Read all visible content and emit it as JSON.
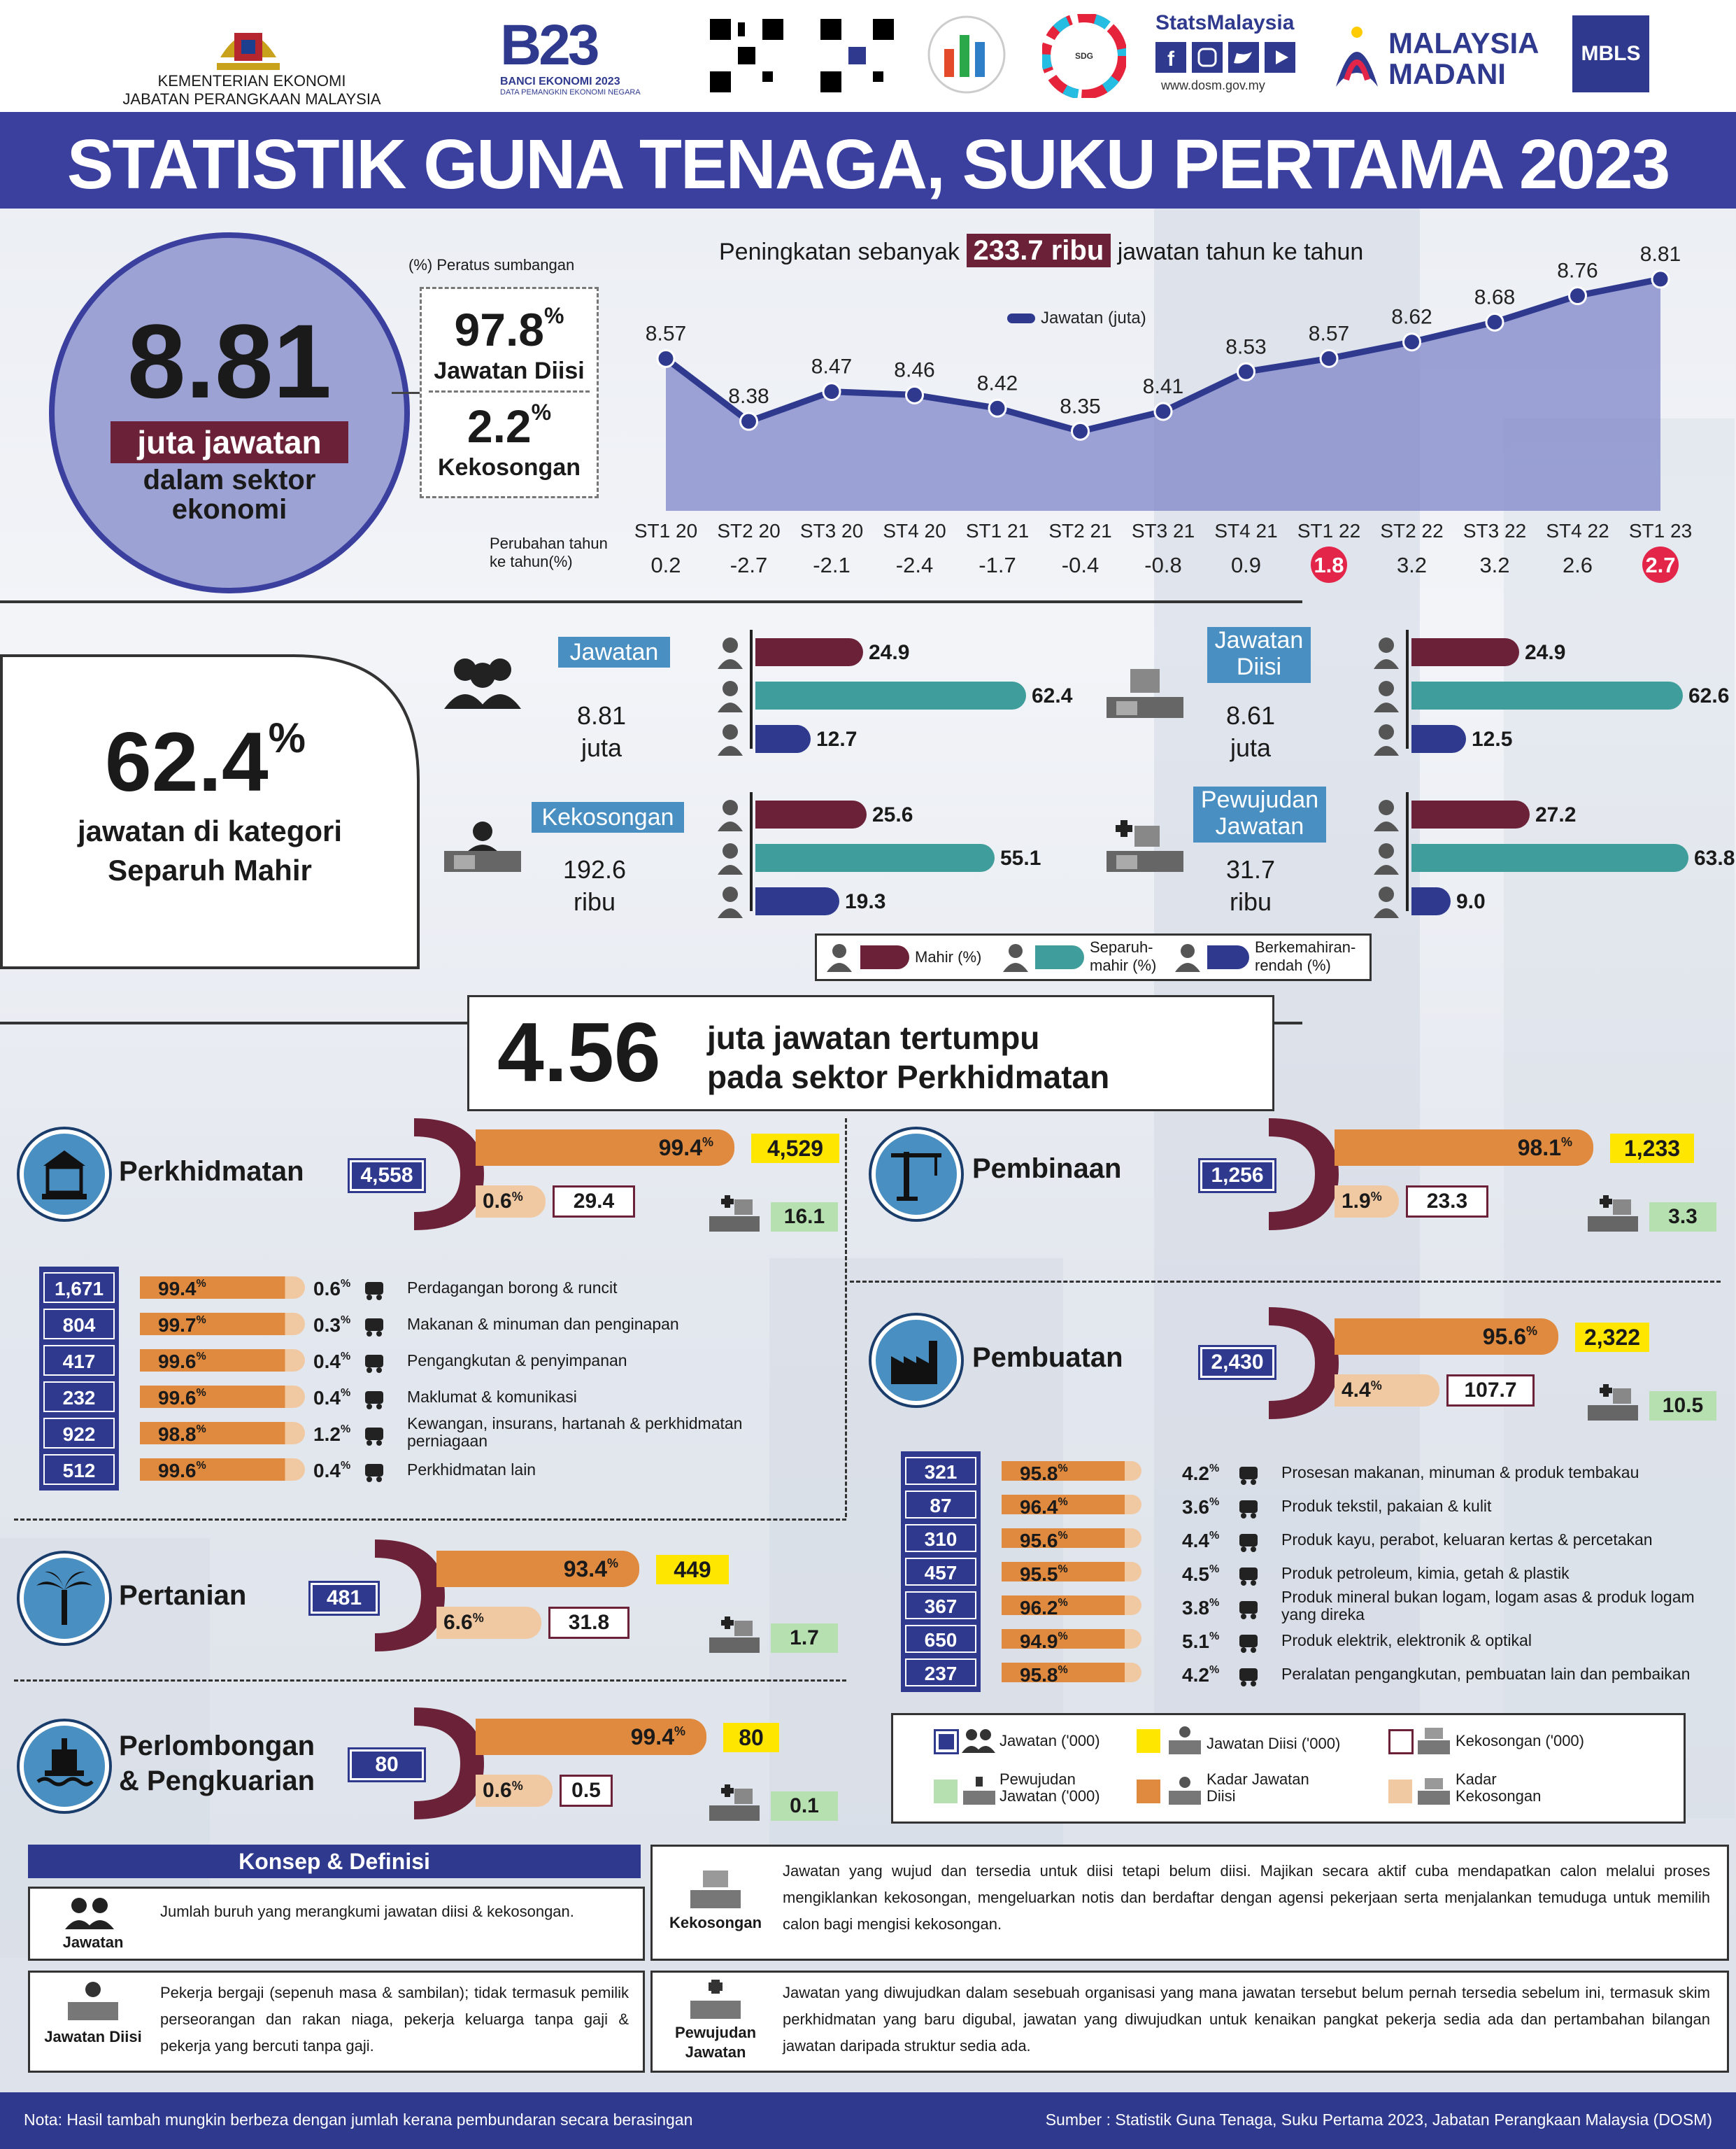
{
  "header": {
    "ministry_line1": "KEMENTERIAN EKONOMI",
    "ministry_line2": "JABATAN PERANGKAAN MALAYSIA",
    "banci_title": "BANCI EKONOMI 2023",
    "banci_sub": "DATA PEMANGKIN EKONOMI NEGARA",
    "stats_brand": "StatsMalaysia",
    "stats_url": "www.dosm.gov.my",
    "madani": "MALAYSIA MADANI",
    "mbls": "MBLS",
    "title": "STATISTIK GUNA TENAGA, SUKU PERTAMA 2023"
  },
  "summary": {
    "big_value": "8.81",
    "big_label": "juta jawatan",
    "big_sub1": "dalam sektor",
    "big_sub2": "ekonomi",
    "share_caption": "(%) Peratus sumbangan",
    "filled_pct": "97.8",
    "filled_label": "Jawatan Diisi",
    "vacancy_pct": "2.2",
    "vacancy_label": "Kekosongan",
    "pct_sign": "%"
  },
  "chart_data": {
    "type": "area",
    "title_pre": "Peningkatan sebanyak",
    "title_highlight": "233.7 ribu",
    "title_post": "jawatan tahun ke tahun",
    "legend": "Jawatan (juta)",
    "categories": [
      "ST1 20",
      "ST2 20",
      "ST3 20",
      "ST4 20",
      "ST1 21",
      "ST2 21",
      "ST3 21",
      "ST4 21",
      "ST1 22",
      "ST2 22",
      "ST3 22",
      "ST4 22",
      "ST1 23"
    ],
    "values": [
      8.57,
      8.38,
      8.47,
      8.46,
      8.42,
      8.35,
      8.41,
      8.53,
      8.57,
      8.62,
      8.68,
      8.76,
      8.81
    ],
    "yoy_label1": "Perubahan tahun",
    "yoy_label2": "ke tahun(%)",
    "yoy": [
      "0.2",
      "-2.7",
      "-2.1",
      "-2.4",
      "-1.7",
      "-0.4",
      "-0.8",
      "0.9",
      "1.8",
      "3.2",
      "3.2",
      "2.6",
      "2.7"
    ],
    "yoy_highlight": [
      false,
      false,
      false,
      false,
      false,
      false,
      false,
      false,
      true,
      false,
      false,
      false,
      true
    ]
  },
  "skills": {
    "big_pct": "62.4",
    "pct_sign": "%",
    "caption1": "jawatan di kategori",
    "caption2": "Separuh Mahir",
    "groups": [
      {
        "label": "Jawatan",
        "value1": "8.81",
        "value2": "juta",
        "bars": [
          24.9,
          62.4,
          12.7
        ]
      },
      {
        "label": "Jawatan Diisi",
        "value1": "8.61",
        "value2": "juta",
        "bars": [
          24.9,
          62.6,
          12.5
        ]
      },
      {
        "label": "Kekosongan",
        "value1": "192.6",
        "value2": "ribu",
        "bars": [
          25.6,
          55.1,
          19.3
        ]
      },
      {
        "label": "Pewujudan Jawatan",
        "value1": "31.7",
        "value2": "ribu",
        "bars": [
          27.2,
          63.8,
          9.0
        ]
      }
    ],
    "bar_labels": [
      [
        "24.9",
        "62.4",
        "12.7"
      ],
      [
        "24.9",
        "62.6",
        "12.5"
      ],
      [
        "25.6",
        "55.1",
        "19.3"
      ],
      [
        "27.2",
        "63.8",
        "9.0"
      ]
    ],
    "legend": [
      "Mahir (%)",
      "Separuh-mahir (%)",
      "Berkemahiran-rendah (%)"
    ],
    "colors": {
      "mahir": "#6b2238",
      "separuh": "#3f9e9b",
      "rendah": "#2f3a8f"
    }
  },
  "services_banner": {
    "value": "4.56",
    "line1": "juta jawatan tertumpu",
    "line2": "pada sektor Perkhidmatan"
  },
  "sectors": {
    "perkhidmatan": {
      "name": "Perkhidmatan",
      "total": "4,558",
      "filled_pct": "99.4",
      "filled": "4,529",
      "vac_pct": "0.6",
      "vac": "29.4",
      "created": "16.1"
    },
    "pembinaan": {
      "name": "Pembinaan",
      "total": "1,256",
      "filled_pct": "98.1",
      "filled": "1,233",
      "vac_pct": "1.9",
      "vac": "23.3",
      "created": "3.3"
    },
    "pembuatan": {
      "name": "Pembuatan",
      "total": "2,430",
      "filled_pct": "95.6",
      "filled": "2,322",
      "vac_pct": "4.4",
      "vac": "107.7",
      "created": "10.5"
    },
    "pertanian": {
      "name": "Pertanian",
      "total": "481",
      "filled_pct": "93.4",
      "filled": "449",
      "vac_pct": "6.6",
      "vac": "31.8",
      "created": "1.7"
    },
    "perlombongan": {
      "name1": "Perlombongan",
      "name2": "& Pengkuarian",
      "total": "80",
      "filled_pct": "99.4",
      "filled": "80",
      "vac_pct": "0.6",
      "vac": "0.5",
      "created": "0.1"
    }
  },
  "services_sub": [
    {
      "total": "1,671",
      "filled_pct": "99.4",
      "vac_pct": "0.6",
      "name": "Perdagangan borong & runcit",
      "icon": "cart-icon"
    },
    {
      "total": "804",
      "filled_pct": "99.7",
      "vac_pct": "0.3",
      "name": "Makanan & minuman dan penginapan",
      "icon": "food-icon"
    },
    {
      "total": "417",
      "filled_pct": "99.6",
      "vac_pct": "0.4",
      "name": "Pengangkutan & penyimpanan",
      "icon": "truck-icon"
    },
    {
      "total": "232",
      "filled_pct": "99.6",
      "vac_pct": "0.4",
      "name": "Maklumat & komunikasi",
      "icon": "phone-icon"
    },
    {
      "total": "922",
      "filled_pct": "98.8",
      "vac_pct": "1.2",
      "name": "Kewangan, insurans, hartanah & perkhidmatan perniagaan",
      "icon": "money-icon"
    },
    {
      "total": "512",
      "filled_pct": "99.6",
      "vac_pct": "0.4",
      "name": "Perkhidmatan lain",
      "icon": "gear-icon"
    }
  ],
  "manufacturing_sub": [
    {
      "total": "321",
      "filled_pct": "95.8",
      "vac_pct": "4.2",
      "name": "Prosesan makanan, minuman & produk tembakau",
      "icon": "bottle-icon"
    },
    {
      "total": "87",
      "filled_pct": "96.4",
      "vac_pct": "3.6",
      "name": "Produk tekstil, pakaian & kulit",
      "icon": "shirt-icon"
    },
    {
      "total": "310",
      "filled_pct": "95.6",
      "vac_pct": "4.4",
      "name": "Produk kayu, perabot, keluaran kertas & percetakan",
      "icon": "chair-icon"
    },
    {
      "total": "457",
      "filled_pct": "95.5",
      "vac_pct": "4.5",
      "name": "Produk petroleum, kimia, getah & plastik",
      "icon": "fuel-icon"
    },
    {
      "total": "367",
      "filled_pct": "96.2",
      "vac_pct": "3.8",
      "name": "Produk mineral bukan logam, logam asas & produk logam yang direka",
      "icon": "mineral-icon"
    },
    {
      "total": "650",
      "filled_pct": "94.9",
      "vac_pct": "5.1",
      "name": "Produk elektrik, elektronik & optikal",
      "icon": "plug-icon"
    },
    {
      "total": "237",
      "filled_pct": "95.8",
      "vac_pct": "4.2",
      "name": "Peralatan pengangkutan, pembuatan lain dan pembaikan",
      "icon": "tools-icon"
    }
  ],
  "sector_legend": {
    "jawatan": "Jawatan ('000)",
    "diisi": "Jawatan Diisi ('000)",
    "kekosongan": "Kekosongan ('000)",
    "pewujudan": "Pewujudan Jawatan ('000)",
    "kadar_diisi": "Kadar Jawatan Diisi",
    "kadar_kosong": "Kadar Kekosongan"
  },
  "definitions": {
    "heading": "Konsep & Definisi",
    "items": [
      {
        "term": "Jawatan",
        "text": "Jumlah buruh yang merangkumi jawatan diisi & kekosongan."
      },
      {
        "term": "Jawatan Diisi",
        "text": "Pekerja bergaji (sepenuh masa & sambilan); tidak termasuk pemilik perseorangan dan rakan niaga, pekerja keluarga tanpa gaji & pekerja yang bercuti tanpa gaji."
      },
      {
        "term": "Kekosongan",
        "text": "Jawatan yang wujud dan tersedia untuk diisi tetapi belum diisi. Majikan secara aktif cuba mendapatkan calon melalui proses mengiklankan kekosongan, mengeluarkan notis dan berdaftar dengan agensi pekerjaan serta menjalankan temuduga untuk memilih calon bagi mengisi kekosongan."
      },
      {
        "term": "Pewujudan Jawatan",
        "text": "Jawatan yang diwujudkan dalam sesebuah organisasi yang mana jawatan tersebut belum pernah tersedia sebelum ini, termasuk skim perkhidmatan yang baru digubal, jawatan yang diwujudkan untuk kenaikan pangkat pekerja sedia ada dan pertambahan bilangan jawatan daripada struktur sedia ada."
      }
    ]
  },
  "footer": {
    "note": "Nota: Hasil tambah mungkin berbeza dengan jumlah kerana pembundaran secara berasingan",
    "source": "Sumber : Statistik Guna Tenaga, Suku Pertama 2023, Jabatan Perangkaan Malaysia (DOSM)"
  }
}
